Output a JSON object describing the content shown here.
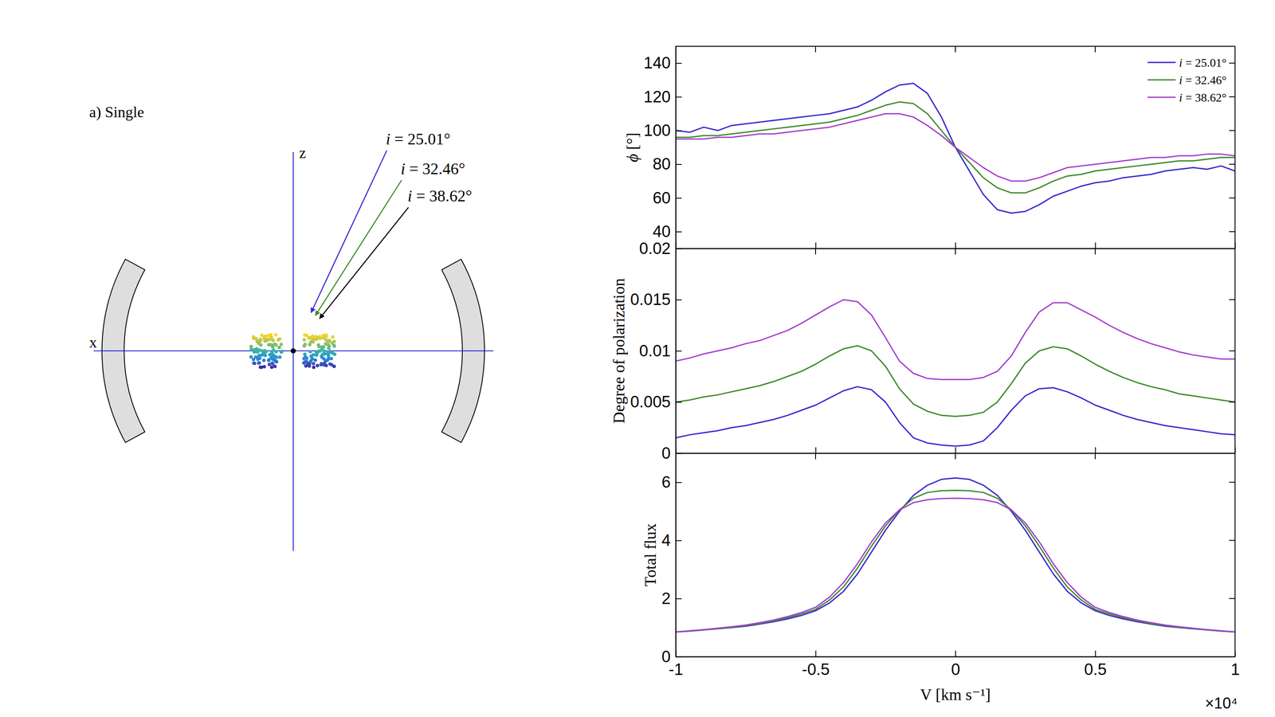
{
  "diagram": {
    "title": "a) Single",
    "axis_labels": {
      "x": "x",
      "z": "z"
    },
    "arrows": [
      {
        "inclination": 25.01,
        "label": "i = 25.01°",
        "color": "#3b27cf"
      },
      {
        "inclination": 32.46,
        "label": "i = 32.46°",
        "color": "#3e8a2a"
      },
      {
        "inclination": 38.62,
        "label": "i = 38.62°",
        "color": "#000000"
      }
    ]
  },
  "chart_data": [
    {
      "type": "line",
      "ylabel": "ϕ [°]",
      "x": [
        -1,
        -0.95,
        -0.9,
        -0.85,
        -0.8,
        -0.75,
        -0.7,
        -0.65,
        -0.6,
        -0.55,
        -0.5,
        -0.45,
        -0.4,
        -0.35,
        -0.3,
        -0.25,
        -0.2,
        -0.15,
        -0.1,
        -0.05,
        0,
        0.05,
        0.1,
        0.15,
        0.2,
        0.25,
        0.3,
        0.35,
        0.4,
        0.45,
        0.5,
        0.55,
        0.6,
        0.65,
        0.7,
        0.75,
        0.8,
        0.85,
        0.9,
        0.95,
        1
      ],
      "xlim": [
        -1,
        1
      ],
      "xticks": [
        -1,
        -0.5,
        0,
        0.5,
        1
      ],
      "ylim": [
        30,
        150
      ],
      "yticks": [
        40,
        60,
        80,
        100,
        120,
        140
      ],
      "tick_labels": "y",
      "legend": "upper right",
      "series": [
        {
          "name": "i = 25.01°",
          "color": "#3b27cf",
          "values": [
            100,
            99,
            102,
            100,
            103,
            104,
            105,
            106,
            107,
            108,
            109,
            110,
            112,
            114,
            118,
            123,
            127,
            128,
            122,
            108,
            90,
            76,
            62,
            53,
            51,
            52,
            56,
            61,
            64,
            67,
            69,
            70,
            72,
            73,
            74,
            76,
            77,
            78,
            77,
            79,
            76
          ]
        },
        {
          "name": "i = 32.46°",
          "color": "#3e8a2a",
          "values": [
            96,
            96,
            97,
            97,
            98,
            99,
            100,
            101,
            102,
            103,
            104,
            105,
            107,
            109,
            112,
            115,
            117,
            116,
            110,
            100,
            90,
            81,
            72,
            66,
            63,
            63,
            66,
            70,
            73,
            74,
            76,
            77,
            78,
            79,
            80,
            81,
            82,
            82,
            83,
            84,
            84
          ]
        },
        {
          "name": "i = 38.62°",
          "color": "#a43fd0",
          "values": [
            95,
            95,
            95,
            96,
            96,
            97,
            98,
            98,
            99,
            100,
            101,
            102,
            104,
            106,
            108,
            110,
            110,
            108,
            103,
            97,
            90,
            84,
            78,
            73,
            70,
            70,
            72,
            75,
            78,
            79,
            80,
            81,
            82,
            83,
            84,
            84,
            85,
            85,
            86,
            86,
            85
          ]
        }
      ]
    },
    {
      "type": "line",
      "ylabel": "Degree of polarization",
      "x": [
        -1,
        -0.95,
        -0.9,
        -0.85,
        -0.8,
        -0.75,
        -0.7,
        -0.65,
        -0.6,
        -0.55,
        -0.5,
        -0.45,
        -0.4,
        -0.35,
        -0.3,
        -0.25,
        -0.2,
        -0.15,
        -0.1,
        -0.05,
        0,
        0.05,
        0.1,
        0.15,
        0.2,
        0.25,
        0.3,
        0.35,
        0.4,
        0.45,
        0.5,
        0.55,
        0.6,
        0.65,
        0.7,
        0.75,
        0.8,
        0.85,
        0.9,
        0.95,
        1
      ],
      "xlim": [
        -1,
        1
      ],
      "xticks": [
        -1,
        -0.5,
        0,
        0.5,
        1
      ],
      "ylim": [
        0,
        0.02
      ],
      "yticks": [
        0,
        0.005,
        0.01,
        0.015,
        0.02
      ],
      "tick_labels": "y",
      "series": [
        {
          "name": "i = 25.01°",
          "color": "#3b27cf",
          "values": [
            0.0015,
            0.0018,
            0.002,
            0.0022,
            0.0025,
            0.0027,
            0.003,
            0.0033,
            0.0037,
            0.0042,
            0.0047,
            0.0054,
            0.0061,
            0.0065,
            0.0062,
            0.005,
            0.003,
            0.0015,
            0.001,
            0.0008,
            0.0007,
            0.0008,
            0.0012,
            0.0025,
            0.0042,
            0.0056,
            0.0063,
            0.0064,
            0.006,
            0.0054,
            0.0047,
            0.0042,
            0.0037,
            0.0033,
            0.003,
            0.0027,
            0.0025,
            0.0023,
            0.0021,
            0.0019,
            0.0018
          ]
        },
        {
          "name": "i = 32.46°",
          "color": "#3e8a2a",
          "values": [
            0.005,
            0.0052,
            0.0055,
            0.0057,
            0.006,
            0.0063,
            0.0066,
            0.007,
            0.0075,
            0.008,
            0.0087,
            0.0095,
            0.0102,
            0.0105,
            0.01,
            0.0085,
            0.0063,
            0.0048,
            0.0041,
            0.0037,
            0.0036,
            0.0037,
            0.004,
            0.005,
            0.0068,
            0.0088,
            0.01,
            0.0104,
            0.0102,
            0.0095,
            0.0087,
            0.008,
            0.0074,
            0.0069,
            0.0065,
            0.0062,
            0.0058,
            0.0056,
            0.0054,
            0.0052,
            0.005
          ]
        },
        {
          "name": "i = 38.62°",
          "color": "#a43fd0",
          "values": [
            0.009,
            0.0093,
            0.0097,
            0.01,
            0.0103,
            0.0107,
            0.011,
            0.0115,
            0.012,
            0.0127,
            0.0135,
            0.0143,
            0.015,
            0.0148,
            0.0135,
            0.0113,
            0.009,
            0.0078,
            0.0073,
            0.0072,
            0.0072,
            0.0072,
            0.0074,
            0.008,
            0.0095,
            0.0118,
            0.0138,
            0.0147,
            0.0147,
            0.014,
            0.0133,
            0.0125,
            0.0118,
            0.0112,
            0.0107,
            0.0103,
            0.0099,
            0.0096,
            0.0094,
            0.0092,
            0.0092
          ]
        }
      ]
    },
    {
      "type": "line",
      "ylabel": "Total flux",
      "xlabel": "V [km s⁻¹]",
      "annotations": [
        "×10⁴"
      ],
      "x": [
        -1,
        -0.95,
        -0.9,
        -0.85,
        -0.8,
        -0.75,
        -0.7,
        -0.65,
        -0.6,
        -0.55,
        -0.5,
        -0.45,
        -0.4,
        -0.35,
        -0.3,
        -0.25,
        -0.2,
        -0.15,
        -0.1,
        -0.05,
        0,
        0.05,
        0.1,
        0.15,
        0.2,
        0.25,
        0.3,
        0.35,
        0.4,
        0.45,
        0.5,
        0.55,
        0.6,
        0.65,
        0.7,
        0.75,
        0.8,
        0.85,
        0.9,
        0.95,
        1
      ],
      "xlim": [
        -1,
        1
      ],
      "xticks": [
        -1,
        -0.5,
        0,
        0.5,
        1
      ],
      "ylim": [
        0,
        7
      ],
      "yticks": [
        0,
        2,
        4,
        6
      ],
      "series": [
        {
          "name": "i = 25.01°",
          "color": "#3b27cf",
          "values": [
            0.85,
            0.88,
            0.92,
            0.96,
            1.0,
            1.05,
            1.12,
            1.2,
            1.3,
            1.42,
            1.58,
            1.85,
            2.25,
            2.85,
            3.6,
            4.35,
            5.0,
            5.55,
            5.9,
            6.1,
            6.15,
            6.1,
            5.9,
            5.55,
            5.0,
            4.35,
            3.6,
            2.85,
            2.25,
            1.85,
            1.58,
            1.42,
            1.3,
            1.2,
            1.12,
            1.05,
            1.0,
            0.96,
            0.92,
            0.88,
            0.85
          ]
        },
        {
          "name": "i = 32.46°",
          "color": "#3e8a2a",
          "values": [
            0.85,
            0.88,
            0.92,
            0.97,
            1.01,
            1.07,
            1.14,
            1.23,
            1.34,
            1.47,
            1.63,
            1.95,
            2.4,
            3.05,
            3.8,
            4.5,
            5.05,
            5.45,
            5.65,
            5.71,
            5.72,
            5.71,
            5.65,
            5.45,
            5.05,
            4.5,
            3.8,
            3.05,
            2.4,
            1.95,
            1.63,
            1.47,
            1.34,
            1.23,
            1.14,
            1.07,
            1.01,
            0.97,
            0.92,
            0.88,
            0.85
          ]
        },
        {
          "name": "i = 38.62°",
          "color": "#a43fd0",
          "values": [
            0.85,
            0.89,
            0.93,
            0.98,
            1.03,
            1.09,
            1.17,
            1.26,
            1.38,
            1.52,
            1.7,
            2.05,
            2.55,
            3.2,
            3.95,
            4.6,
            5.05,
            5.3,
            5.4,
            5.44,
            5.45,
            5.44,
            5.4,
            5.3,
            5.05,
            4.6,
            3.95,
            3.2,
            2.55,
            2.05,
            1.7,
            1.52,
            1.38,
            1.26,
            1.17,
            1.09,
            1.03,
            0.98,
            0.93,
            0.89,
            0.85
          ]
        }
      ]
    }
  ]
}
